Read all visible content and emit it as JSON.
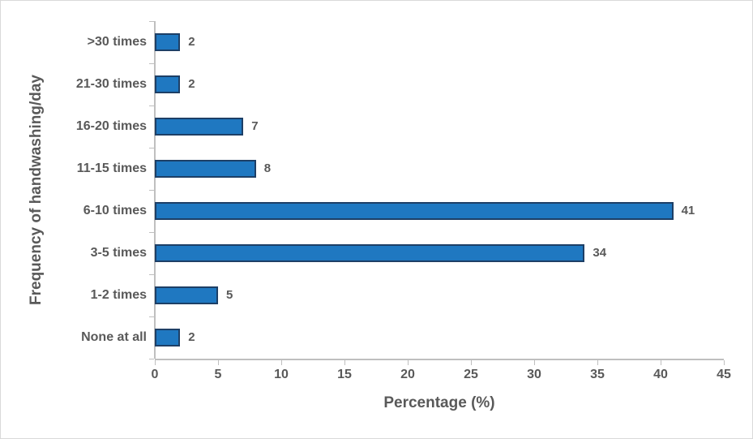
{
  "chart_data": {
    "type": "bar",
    "orientation": "horizontal",
    "title": "",
    "xlabel": "Percentage (%)",
    "ylabel": "Frequency of handwashing/day",
    "row_order": "top_to_bottom",
    "categories": [
      ">30 times",
      "21-30 times",
      "16-20 times",
      "11-15 times",
      "6-10 times",
      "3-5 times",
      "1-2 times",
      "None at all"
    ],
    "values": [
      2,
      2,
      7,
      8,
      41,
      34,
      5,
      2
    ],
    "data_labels": [
      "2",
      "2",
      "7",
      "8",
      "41",
      "34",
      "5",
      "2"
    ],
    "xlim": [
      0,
      45
    ],
    "xticks": [
      0,
      5,
      10,
      15,
      20,
      25,
      30,
      35,
      40,
      45
    ],
    "grid": false,
    "legend": false,
    "data_labels_shown": true
  },
  "colors": {
    "bar_fill": "#1F78C1",
    "bar_border": "#1D3F66",
    "text": "#595959",
    "axis_line": "#BFBFBF",
    "frame_border": "#D9D9D9",
    "background": "#FFFFFF"
  }
}
